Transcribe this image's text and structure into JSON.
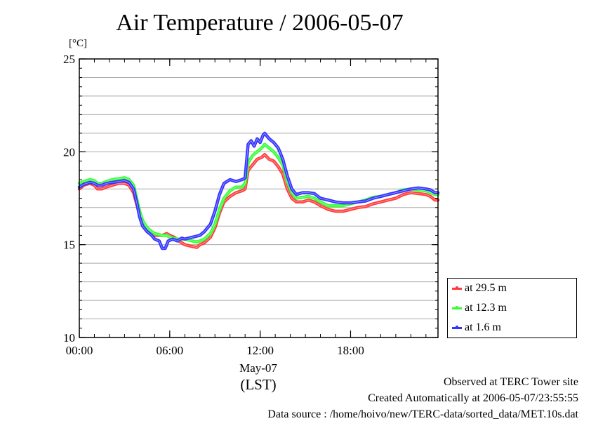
{
  "chart_data": {
    "type": "line",
    "title": "Air Temperature / 2006-05-07",
    "ylabel": "[°C]",
    "ylim": [
      10,
      25
    ],
    "xlim_hours": [
      0,
      23.8
    ],
    "yticks": [
      "10",
      "15",
      "20",
      "25"
    ],
    "xticks": [
      {
        "h": 0,
        "label": "00:00"
      },
      {
        "h": 6,
        "label": "06:00"
      },
      {
        "h": 12,
        "label": "12:00"
      },
      {
        "h": 18,
        "label": "18:00"
      }
    ],
    "date_label": "May-07",
    "timezone_label": "(LST)",
    "grid": true,
    "legend_position": "right",
    "series": [
      {
        "name": "at 29.5 m",
        "color": "#ff3b3b",
        "points": [
          [
            0,
            18.0
          ],
          [
            0.3,
            18.2
          ],
          [
            0.7,
            18.3
          ],
          [
            1.0,
            18.2
          ],
          [
            1.2,
            18.0
          ],
          [
            1.5,
            18.0
          ],
          [
            1.8,
            18.1
          ],
          [
            2.2,
            18.2
          ],
          [
            2.6,
            18.3
          ],
          [
            3.0,
            18.3
          ],
          [
            3.3,
            18.2
          ],
          [
            3.6,
            17.8
          ],
          [
            3.8,
            17.2
          ],
          [
            4.0,
            16.6
          ],
          [
            4.2,
            16.2
          ],
          [
            4.5,
            15.8
          ],
          [
            4.8,
            15.6
          ],
          [
            5.0,
            15.5
          ],
          [
            5.5,
            15.5
          ],
          [
            5.8,
            15.6
          ],
          [
            6.0,
            15.5
          ],
          [
            6.3,
            15.4
          ],
          [
            6.6,
            15.2
          ],
          [
            7.0,
            15.0
          ],
          [
            7.5,
            14.9
          ],
          [
            7.8,
            14.85
          ],
          [
            8.0,
            15.0
          ],
          [
            8.3,
            15.1
          ],
          [
            8.7,
            15.4
          ],
          [
            9.0,
            15.9
          ],
          [
            9.3,
            16.7
          ],
          [
            9.6,
            17.3
          ],
          [
            10.0,
            17.6
          ],
          [
            10.4,
            17.8
          ],
          [
            10.8,
            17.9
          ],
          [
            11.0,
            18.0
          ],
          [
            11.2,
            19.0
          ],
          [
            11.5,
            19.3
          ],
          [
            11.8,
            19.6
          ],
          [
            12.1,
            19.7
          ],
          [
            12.3,
            19.85
          ],
          [
            12.6,
            19.6
          ],
          [
            12.9,
            19.5
          ],
          [
            13.2,
            19.2
          ],
          [
            13.5,
            18.8
          ],
          [
            13.8,
            18.0
          ],
          [
            14.1,
            17.5
          ],
          [
            14.4,
            17.3
          ],
          [
            14.8,
            17.3
          ],
          [
            15.2,
            17.4
          ],
          [
            15.6,
            17.3
          ],
          [
            16.0,
            17.1
          ],
          [
            16.5,
            16.9
          ],
          [
            17.0,
            16.8
          ],
          [
            17.5,
            16.8
          ],
          [
            18.0,
            16.9
          ],
          [
            18.5,
            17.0
          ],
          [
            19.0,
            17.05
          ],
          [
            19.5,
            17.2
          ],
          [
            20.0,
            17.3
          ],
          [
            20.5,
            17.4
          ],
          [
            21.0,
            17.5
          ],
          [
            21.5,
            17.7
          ],
          [
            22.0,
            17.8
          ],
          [
            22.5,
            17.75
          ],
          [
            23.0,
            17.7
          ],
          [
            23.3,
            17.6
          ],
          [
            23.6,
            17.4
          ],
          [
            23.8,
            17.4
          ]
        ]
      },
      {
        "name": "at 12.3 m",
        "color": "#33ff33",
        "points": [
          [
            0,
            18.3
          ],
          [
            0.3,
            18.4
          ],
          [
            0.7,
            18.5
          ],
          [
            1.0,
            18.45
          ],
          [
            1.2,
            18.3
          ],
          [
            1.5,
            18.3
          ],
          [
            1.8,
            18.4
          ],
          [
            2.2,
            18.5
          ],
          [
            2.6,
            18.55
          ],
          [
            3.0,
            18.6
          ],
          [
            3.3,
            18.5
          ],
          [
            3.6,
            18.2
          ],
          [
            3.8,
            17.5
          ],
          [
            4.0,
            16.8
          ],
          [
            4.2,
            16.3
          ],
          [
            4.5,
            15.9
          ],
          [
            4.8,
            15.7
          ],
          [
            5.0,
            15.6
          ],
          [
            5.5,
            15.5
          ],
          [
            5.8,
            15.5
          ],
          [
            6.0,
            15.4
          ],
          [
            6.5,
            15.3
          ],
          [
            7.0,
            15.3
          ],
          [
            7.5,
            15.2
          ],
          [
            7.8,
            15.15
          ],
          [
            8.0,
            15.2
          ],
          [
            8.3,
            15.3
          ],
          [
            8.7,
            15.6
          ],
          [
            9.0,
            16.1
          ],
          [
            9.3,
            16.9
          ],
          [
            9.6,
            17.5
          ],
          [
            10.0,
            17.9
          ],
          [
            10.4,
            18.1
          ],
          [
            10.8,
            18.1
          ],
          [
            11.0,
            18.3
          ],
          [
            11.2,
            19.4
          ],
          [
            11.5,
            19.8
          ],
          [
            11.8,
            20.0
          ],
          [
            12.1,
            20.2
          ],
          [
            12.3,
            20.4
          ],
          [
            12.6,
            20.2
          ],
          [
            12.9,
            20.0
          ],
          [
            13.2,
            19.7
          ],
          [
            13.5,
            19.3
          ],
          [
            13.8,
            18.4
          ],
          [
            14.1,
            17.8
          ],
          [
            14.4,
            17.5
          ],
          [
            14.8,
            17.55
          ],
          [
            15.2,
            17.6
          ],
          [
            15.6,
            17.5
          ],
          [
            16.0,
            17.3
          ],
          [
            16.5,
            17.1
          ],
          [
            17.0,
            17.1
          ],
          [
            17.5,
            17.1
          ],
          [
            18.0,
            17.2
          ],
          [
            18.5,
            17.3
          ],
          [
            19.0,
            17.4
          ],
          [
            19.5,
            17.55
          ],
          [
            20.0,
            17.6
          ],
          [
            20.5,
            17.7
          ],
          [
            21.0,
            17.8
          ],
          [
            21.5,
            17.95
          ],
          [
            22.0,
            18.0
          ],
          [
            22.5,
            17.95
          ],
          [
            23.0,
            17.9
          ],
          [
            23.3,
            17.8
          ],
          [
            23.6,
            17.7
          ],
          [
            23.8,
            17.7
          ]
        ]
      },
      {
        "name": "at 1.6 m",
        "color": "#3333ff",
        "points": [
          [
            0,
            18.1
          ],
          [
            0.3,
            18.25
          ],
          [
            0.7,
            18.35
          ],
          [
            1.0,
            18.3
          ],
          [
            1.2,
            18.2
          ],
          [
            1.5,
            18.2
          ],
          [
            1.8,
            18.3
          ],
          [
            2.2,
            18.35
          ],
          [
            2.6,
            18.4
          ],
          [
            3.0,
            18.45
          ],
          [
            3.3,
            18.35
          ],
          [
            3.6,
            18.0
          ],
          [
            3.8,
            17.3
          ],
          [
            4.0,
            16.5
          ],
          [
            4.2,
            16.0
          ],
          [
            4.5,
            15.7
          ],
          [
            4.8,
            15.5
          ],
          [
            5.0,
            15.3
          ],
          [
            5.3,
            15.2
          ],
          [
            5.5,
            14.8
          ],
          [
            5.7,
            14.8
          ],
          [
            5.9,
            15.2
          ],
          [
            6.2,
            15.3
          ],
          [
            6.5,
            15.2
          ],
          [
            6.8,
            15.35
          ],
          [
            7.0,
            15.3
          ],
          [
            7.5,
            15.4
          ],
          [
            8.0,
            15.5
          ],
          [
            8.3,
            15.7
          ],
          [
            8.7,
            16.1
          ],
          [
            9.0,
            16.8
          ],
          [
            9.3,
            17.7
          ],
          [
            9.6,
            18.3
          ],
          [
            10.0,
            18.5
          ],
          [
            10.4,
            18.4
          ],
          [
            10.8,
            18.5
          ],
          [
            11.0,
            18.6
          ],
          [
            11.2,
            20.4
          ],
          [
            11.4,
            20.6
          ],
          [
            11.6,
            20.3
          ],
          [
            11.8,
            20.7
          ],
          [
            12.0,
            20.5
          ],
          [
            12.2,
            20.9
          ],
          [
            12.3,
            21.0
          ],
          [
            12.6,
            20.7
          ],
          [
            12.9,
            20.5
          ],
          [
            13.2,
            20.2
          ],
          [
            13.5,
            19.6
          ],
          [
            13.8,
            18.7
          ],
          [
            14.1,
            18.0
          ],
          [
            14.4,
            17.7
          ],
          [
            14.8,
            17.8
          ],
          [
            15.2,
            17.8
          ],
          [
            15.6,
            17.75
          ],
          [
            16.0,
            17.5
          ],
          [
            16.5,
            17.4
          ],
          [
            17.0,
            17.3
          ],
          [
            17.5,
            17.25
          ],
          [
            18.0,
            17.25
          ],
          [
            18.5,
            17.3
          ],
          [
            19.0,
            17.35
          ],
          [
            19.5,
            17.5
          ],
          [
            20.0,
            17.6
          ],
          [
            20.5,
            17.7
          ],
          [
            21.0,
            17.8
          ],
          [
            21.5,
            17.9
          ],
          [
            22.0,
            18.0
          ],
          [
            22.5,
            18.05
          ],
          [
            23.0,
            18.0
          ],
          [
            23.3,
            17.95
          ],
          [
            23.6,
            17.8
          ],
          [
            23.8,
            17.8
          ]
        ]
      }
    ]
  },
  "notes": {
    "observed": "Observed at TERC Tower site",
    "created": "Created Automatically at 2006-05-07/23:55:55",
    "source": "Data source : /home/hoivo/new/TERC-data/sorted_data/MET.10s.dat"
  }
}
